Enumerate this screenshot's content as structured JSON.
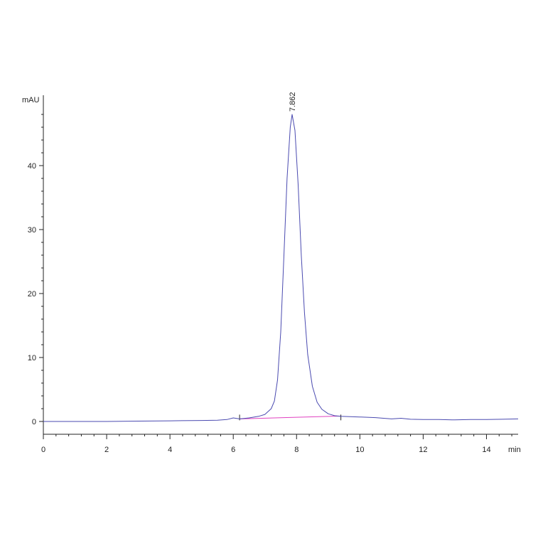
{
  "chart_data": {
    "type": "line",
    "title": "",
    "xlabel": "min",
    "ylabel": "mAU",
    "xlim": [
      0,
      15
    ],
    "ylim": [
      -2,
      51
    ],
    "x_ticks": [
      0,
      2,
      4,
      6,
      8,
      10,
      12,
      14
    ],
    "y_ticks": [
      0,
      10,
      20,
      30,
      40
    ],
    "grid": false,
    "legend": "none",
    "colors": {
      "signal": "#4a4ab0",
      "baseline": "#e040c0",
      "axis": "#222222"
    },
    "series": [
      {
        "x": [
          0,
          1,
          2,
          3,
          4,
          5,
          5.5,
          5.8,
          6.0,
          6.2,
          6.5,
          6.8,
          7.0,
          7.2,
          7.3,
          7.4,
          7.5,
          7.6,
          7.7,
          7.8,
          7.86,
          7.95,
          8.05,
          8.15,
          8.25,
          8.35,
          8.5,
          8.65,
          8.8,
          9.0,
          9.2,
          9.4,
          9.7,
          10.0,
          10.5,
          11.0,
          11.3,
          11.6,
          12.0,
          12.5,
          13.0,
          13.5,
          14.0,
          14.5,
          15.0
        ],
        "y": [
          0.0,
          0.0,
          0.0,
          0.05,
          0.1,
          0.15,
          0.2,
          0.3,
          0.55,
          0.4,
          0.55,
          0.8,
          1.1,
          2.0,
          3.2,
          6.5,
          14.0,
          26.0,
          38.0,
          46.0,
          48.0,
          45.5,
          37.0,
          26.0,
          17.0,
          10.5,
          5.5,
          3.0,
          1.9,
          1.2,
          0.9,
          0.8,
          0.75,
          0.7,
          0.6,
          0.4,
          0.5,
          0.35,
          0.3,
          0.3,
          0.25,
          0.3,
          0.3,
          0.35,
          0.4
        ]
      }
    ],
    "baseline": {
      "x": [
        6.2,
        9.4
      ],
      "y": [
        0.4,
        0.85
      ]
    },
    "peak": {
      "x": 7.862,
      "y": 48.0,
      "label": "7.862"
    }
  }
}
